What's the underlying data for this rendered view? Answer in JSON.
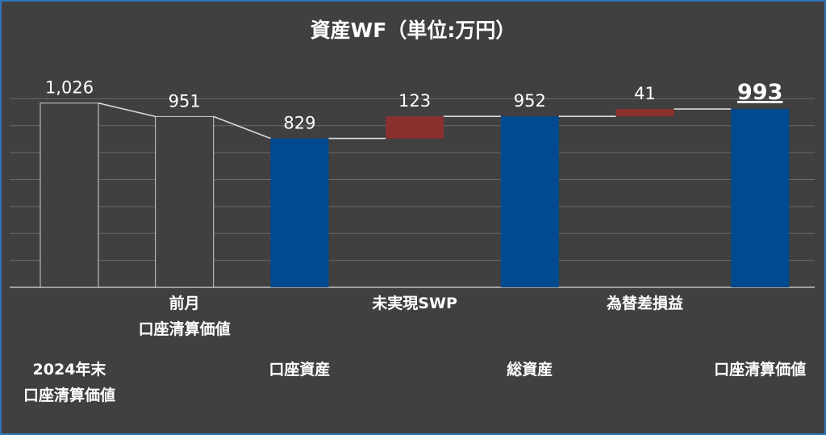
{
  "chart_data": {
    "type": "bar",
    "title": "資産WF（単位:万円）",
    "categories": [
      "2024年末\n口座清算価値",
      "前月\n口座清算価値",
      "口座資産",
      "未実現SWP",
      "総資産",
      "為替差損益",
      "口座清算価値"
    ],
    "values": [
      1026,
      951,
      829,
      123,
      952,
      41,
      993
    ],
    "value_labels": [
      "1,026",
      "951",
      "829",
      "123",
      "952",
      "41",
      "993"
    ],
    "bar_kinds": [
      "total",
      "total",
      "total",
      "delta",
      "total",
      "delta",
      "total"
    ],
    "ylim": [
      0,
      1200
    ],
    "grid": true,
    "xlabel": "",
    "ylabel": "",
    "colors": {
      "gray_fill": "#404040",
      "gray_stroke": "#d0d0d0",
      "blue": "#004a8f",
      "red": "#8b2f2f",
      "grid": "#6a6a6a",
      "text": "#ffffff"
    }
  }
}
